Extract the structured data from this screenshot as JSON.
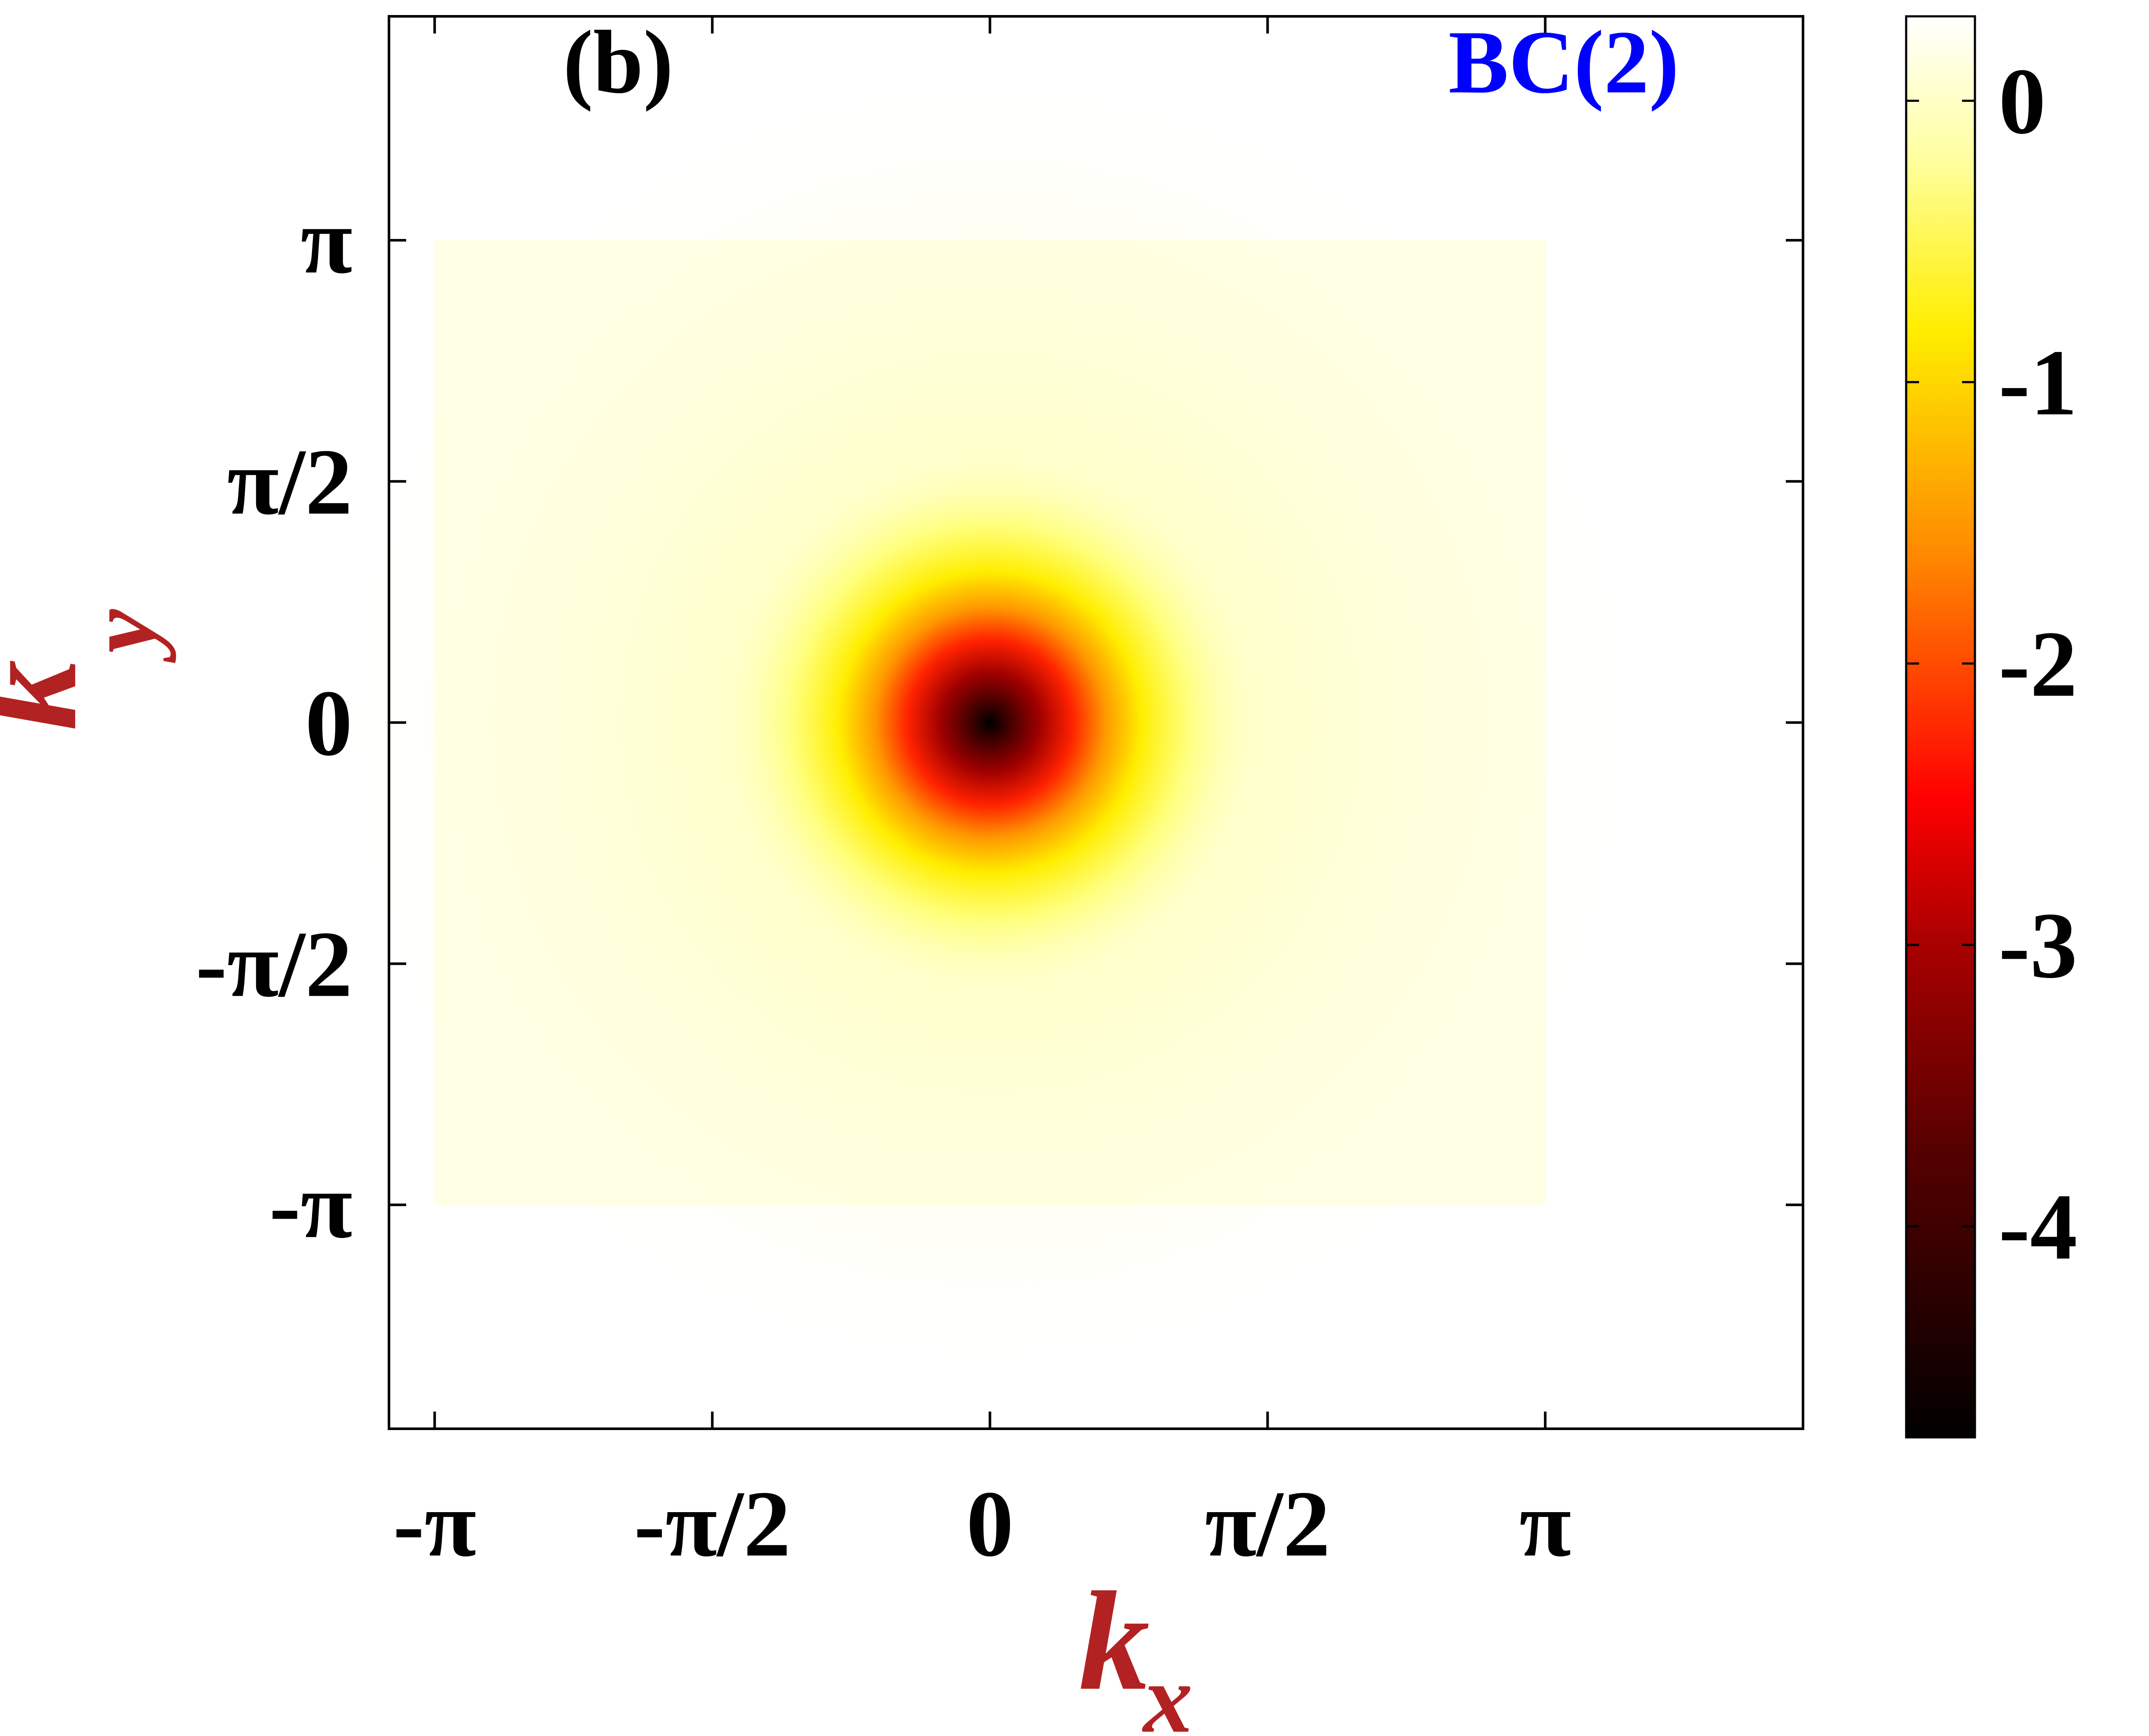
{
  "chart_data": {
    "type": "heatmap",
    "panel_label": "(b)",
    "annotation": "BC(2)",
    "xlabel": {
      "main": "k",
      "sub": "x"
    },
    "ylabel": {
      "main": "k",
      "sub": "y"
    },
    "xlim": [
      -3.4,
      4.6
    ],
    "ylim": [
      -4.6,
      4.6
    ],
    "x_ticks": [
      {
        "value": -3.14159,
        "label": "-π"
      },
      {
        "value": -1.5708,
        "label": "-π/2"
      },
      {
        "value": 0,
        "label": "0"
      },
      {
        "value": 1.5708,
        "label": "π/2"
      },
      {
        "value": 3.14159,
        "label": "π"
      }
    ],
    "y_ticks": [
      {
        "value": 3.14159,
        "label": "π"
      },
      {
        "value": 1.5708,
        "label": "π/2"
      },
      {
        "value": 0,
        "label": "0"
      },
      {
        "value": -1.5708,
        "label": "-π/2"
      },
      {
        "value": -3.14159,
        "label": "-π"
      }
    ],
    "data_extent": {
      "x": [
        -3.14159,
        3.14159
      ],
      "y": [
        -3.14159,
        3.14159
      ]
    },
    "field": {
      "description": "Berry curvature sharply peaked (negative) at kx=0, ky=0, decaying to ~0 elsewhere",
      "peak_location": [
        0,
        0
      ],
      "peak_value": -4.7,
      "background_value": 0.1
    },
    "colorbar": {
      "range": [
        -4.75,
        0.3
      ],
      "ticks": [
        {
          "value": 0,
          "label": "0"
        },
        {
          "value": -1,
          "label": "-1"
        },
        {
          "value": -2,
          "label": "-2"
        },
        {
          "value": -3,
          "label": "-3"
        },
        {
          "value": -4,
          "label": "-4"
        }
      ],
      "colormap": "hot",
      "stops": [
        "#000000",
        "#8b0000",
        "#ff0000",
        "#ff8c00",
        "#ffff00",
        "#ffffff"
      ]
    },
    "colors": {
      "axis_label": "#b22222",
      "annotation": "#0000ff",
      "panel_label": "#000000"
    }
  }
}
